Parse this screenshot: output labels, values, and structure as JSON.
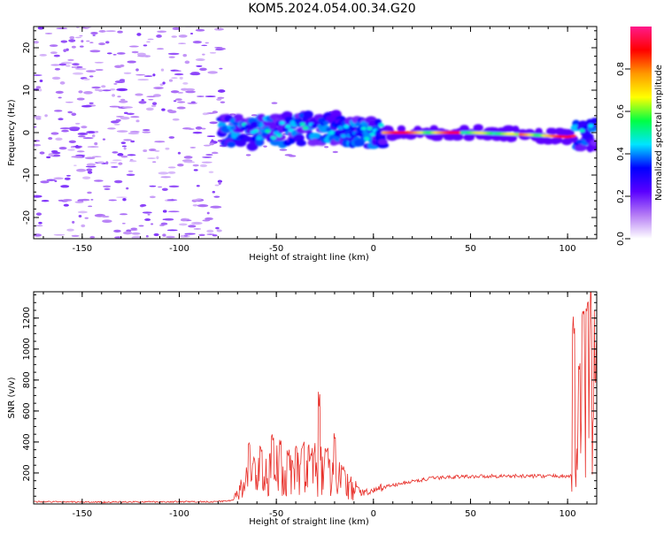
{
  "title": "KOM5.2024.054.00.34.G20",
  "chart_data": [
    {
      "type": "heatmap",
      "xlabel": "Height of straight line (km)",
      "ylabel": "Frequency (Hz)",
      "xlim": [
        -175,
        115
      ],
      "ylim": [
        -25,
        25
      ],
      "x_ticks": [
        -150,
        -100,
        -50,
        0,
        50,
        100
      ],
      "y_ticks": [
        -20,
        -10,
        0,
        10,
        20
      ],
      "colorbar": {
        "label": "Normalized spectral amplitude",
        "range": [
          0,
          1
        ],
        "ticks": [
          "0.0",
          "0.2",
          "0.4",
          "0.6",
          "0.8"
        ],
        "colors": [
          "#ffffff",
          "#b57cf5",
          "#5a00ff",
          "#0000ff",
          "#00e5ff",
          "#00ff44",
          "#ffff00",
          "#ff9900",
          "#ff0000",
          "#ff1a8c"
        ]
      },
      "features": [
        {
          "name": "noise",
          "x_range": [
            -175,
            -78
          ],
          "y_range": [
            -25,
            25
          ],
          "amplitude": 0.1
        },
        {
          "name": "signal-band",
          "x_range": [
            -78,
            115
          ],
          "center_frequency": [
            [
              -78,
              0.5
            ],
            [
              -60,
              0
            ],
            [
              -40,
              1
            ],
            [
              -20,
              1
            ],
            [
              -5,
              0
            ],
            [
              10,
              0
            ],
            [
              50,
              0
            ],
            [
              80,
              -0.5
            ],
            [
              100,
              -1
            ],
            [
              115,
              0
            ]
          ],
          "peak_amplitude": 0.95
        }
      ]
    },
    {
      "type": "line",
      "xlabel": "Height of straight line (km)",
      "ylabel": "SNR (v/v)",
      "xlim": [
        -175,
        115
      ],
      "ylim": [
        0,
        1370
      ],
      "x_ticks": [
        -150,
        -100,
        -50,
        0,
        50,
        100
      ],
      "y_ticks": [
        200,
        400,
        600,
        800,
        1000,
        1200
      ],
      "color": "#e8302a",
      "baseline": [
        [
          -175,
          15
        ],
        [
          -140,
          12
        ],
        [
          -100,
          14
        ],
        [
          -80,
          15
        ],
        [
          -72,
          25
        ],
        [
          -65,
          150
        ],
        [
          -60,
          180
        ],
        [
          -55,
          170
        ],
        [
          -50,
          220
        ],
        [
          -45,
          200
        ],
        [
          -40,
          210
        ],
        [
          -35,
          230
        ],
        [
          -30,
          220
        ],
        [
          -25,
          210
        ],
        [
          -20,
          200
        ],
        [
          -15,
          130
        ],
        [
          -10,
          90
        ],
        [
          -5,
          70
        ],
        [
          0,
          80
        ],
        [
          5,
          110
        ],
        [
          10,
          120
        ],
        [
          20,
          145
        ],
        [
          30,
          165
        ],
        [
          40,
          175
        ],
        [
          60,
          180
        ],
        [
          80,
          180
        ],
        [
          100,
          180
        ],
        [
          104,
          175
        ],
        [
          108,
          500
        ],
        [
          112,
          800
        ],
        [
          115,
          600
        ]
      ],
      "spikes": [
        [
          -64,
          430
        ],
        [
          -58,
          390
        ],
        [
          -52,
          450
        ],
        [
          -48,
          420
        ],
        [
          -44,
          360
        ],
        [
          -40,
          380
        ],
        [
          -36,
          430
        ],
        [
          -33,
          300
        ],
        [
          -28,
          740
        ],
        [
          -24,
          390
        ],
        [
          -20,
          470
        ],
        [
          -16,
          260
        ],
        [
          -12,
          150
        ],
        [
          -8,
          120
        ],
        [
          103,
          1250
        ],
        [
          106,
          1000
        ],
        [
          108,
          1370
        ],
        [
          110,
          1360
        ],
        [
          112,
          1300
        ],
        [
          114,
          900
        ]
      ]
    }
  ]
}
